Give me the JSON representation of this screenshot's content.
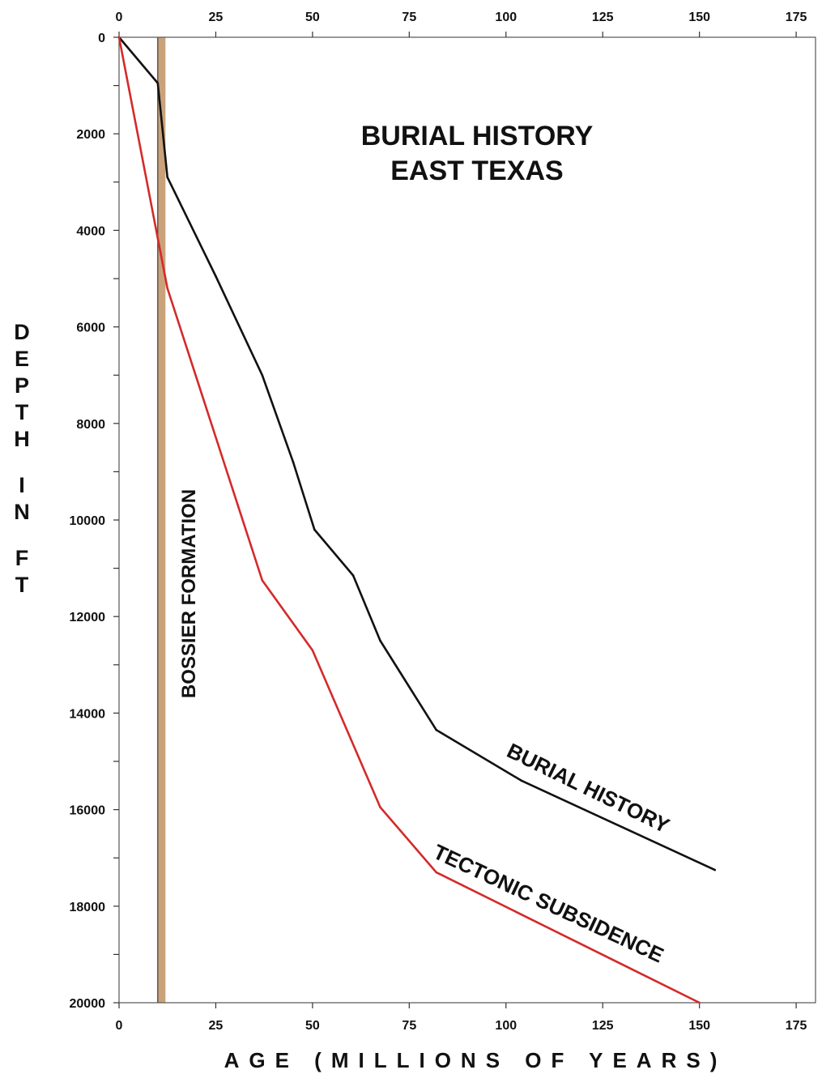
{
  "chart_data": {
    "type": "line",
    "title": [
      "BURIAL  HISTORY",
      "EAST  TEXAS"
    ],
    "xlabel": "AGE  (MILLIONS  OF  YEARS)",
    "ylabel": "DEPTH IN FT",
    "xlim": [
      0,
      180
    ],
    "ylim": [
      0,
      20000
    ],
    "y_inverted": true,
    "x_axis_position": "top and bottom",
    "x_ticks": [
      0,
      25,
      50,
      75,
      100,
      125,
      150,
      175
    ],
    "x_tick_labels": [
      "0",
      "25",
      "50",
      "75",
      "100",
      "125",
      "150",
      "175"
    ],
    "y_ticks": [
      0,
      2000,
      4000,
      6000,
      8000,
      10000,
      12000,
      14000,
      16000,
      18000,
      20000
    ],
    "y_tick_labels": [
      "0",
      "2000",
      "4000",
      "6000",
      "8000",
      "10000",
      "12000",
      "14000",
      "16000",
      "18000",
      "20000"
    ],
    "y_minor_step": 1000,
    "grid": false,
    "series": [
      {
        "name": "BURIAL HISTORY",
        "color": "#111111",
        "points": [
          [
            0,
            0
          ],
          [
            10,
            950
          ],
          [
            12.5,
            2900
          ],
          [
            25,
            4950
          ],
          [
            37,
            7000
          ],
          [
            45,
            8800
          ],
          [
            50.5,
            10200
          ],
          [
            60.5,
            11150
          ],
          [
            67.5,
            12500
          ],
          [
            82,
            14350
          ],
          [
            104,
            15400
          ],
          [
            154,
            17250
          ]
        ]
      },
      {
        "name": "TECTONIC SUBSIDENCE",
        "color": "#d42a2a",
        "points": [
          [
            0,
            0
          ],
          [
            12.5,
            5200
          ],
          [
            37,
            11250
          ],
          [
            50,
            12700
          ],
          [
            67.5,
            15950
          ],
          [
            82,
            17300
          ],
          [
            150,
            20000
          ]
        ]
      }
    ],
    "band": {
      "label": "BOSSIER  FORMATION",
      "x_range": [
        10,
        12
      ],
      "color": "#c9a27a",
      "edge_color": "#3a3a3a"
    }
  }
}
